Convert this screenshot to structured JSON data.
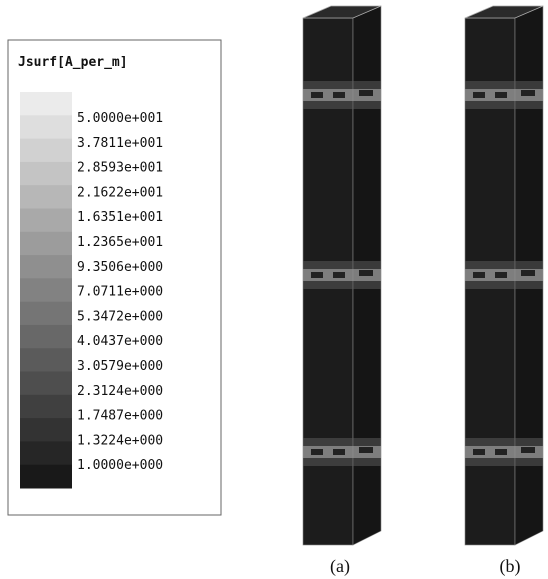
{
  "legend": {
    "title": "Jsurf[A_per_m]",
    "labels": [
      "5.0000e+001",
      "3.7811e+001",
      "2.8593e+001",
      "2.1622e+001",
      "1.6351e+001",
      "1.2365e+001",
      "9.3506e+000",
      "7.0711e+000",
      "5.3472e+000",
      "4.0437e+000",
      "3.0579e+000",
      "2.3124e+000",
      "1.7487e+000",
      "1.3224e+000",
      "1.0000e+000"
    ]
  },
  "captions": [
    "(a)",
    "(b)"
  ]
}
